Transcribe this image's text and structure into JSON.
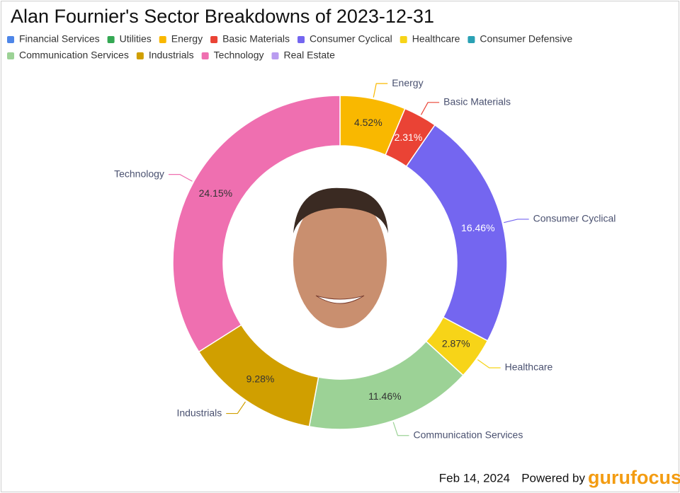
{
  "chart_data": {
    "type": "donut",
    "title": "Alan Fournier's Sector Breakdowns of 2023-12-31",
    "series": [
      {
        "name": "Financial Services",
        "color": "#4e86e8",
        "values": [
          null
        ],
        "value_labels": [
          null
        ]
      },
      {
        "name": "Utilities",
        "color": "#34a853",
        "values": [
          null
        ],
        "value_labels": [
          null
        ]
      },
      {
        "name": "Energy",
        "color": "#f9b800",
        "values": [
          4.52
        ],
        "value_labels": [
          "4.52%"
        ]
      },
      {
        "name": "Basic Materials",
        "color": "#ea4335",
        "values": [
          2.31
        ],
        "value_labels": [
          "2.31%"
        ]
      },
      {
        "name": "Consumer Cyclical",
        "color": "#7466f0",
        "values": [
          16.46
        ],
        "value_labels": [
          "16.46%"
        ]
      },
      {
        "name": "Healthcare",
        "color": "#f7d418",
        "values": [
          2.87
        ],
        "value_labels": [
          "2.87%"
        ]
      },
      {
        "name": "Consumer Defensive",
        "color": "#2aa1b4",
        "values": [
          null
        ],
        "value_labels": [
          null
        ]
      },
      {
        "name": "Communication Services",
        "color": "#9cd296",
        "values": [
          11.46
        ],
        "value_labels": [
          "11.46%"
        ]
      },
      {
        "name": "Industrials",
        "color": "#d09f00",
        "values": [
          9.28
        ],
        "value_labels": [
          "9.28%"
        ]
      },
      {
        "name": "Technology",
        "color": "#ef6fb0",
        "values": [
          24.15
        ],
        "value_labels": [
          "24.15%"
        ]
      },
      {
        "name": "Real Estate",
        "color": "#b99cf0",
        "values": [
          null
        ],
        "value_labels": [
          null
        ]
      }
    ],
    "date": "Feb 14, 2024",
    "powered_by": "Powered by",
    "brand": "gurufocus"
  }
}
